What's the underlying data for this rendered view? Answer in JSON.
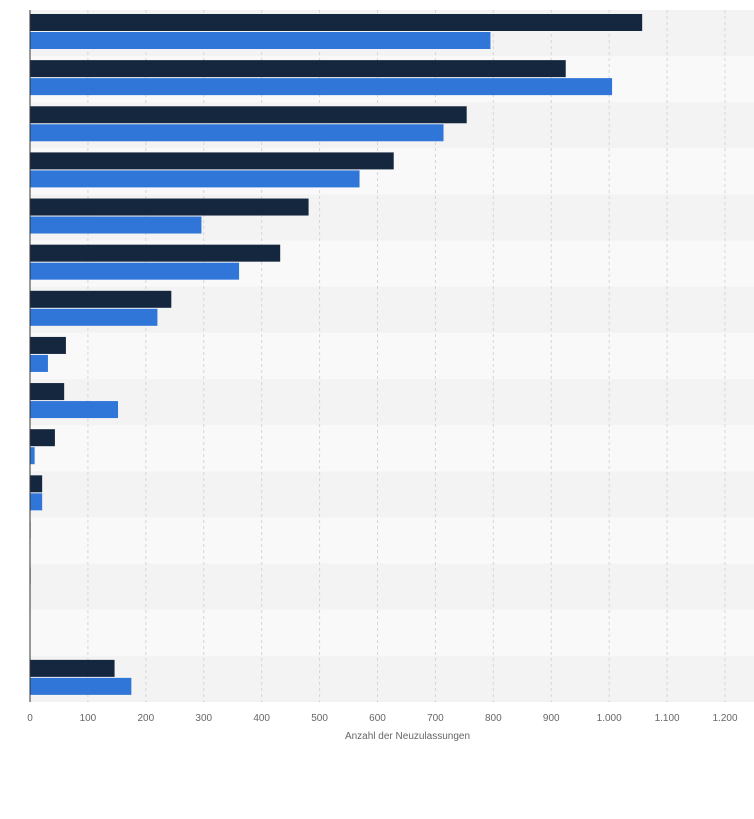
{
  "chart_data": {
    "type": "bar",
    "orientation": "horizontal",
    "title": "",
    "xlabel": "Anzahl der Neuzulassungen",
    "ylabel": "",
    "xlim": [
      0,
      1200
    ],
    "x_ticks": [
      0,
      100,
      200,
      300,
      400,
      500,
      600,
      700,
      800,
      900,
      1000,
      1100,
      1200
    ],
    "x_tick_labels": [
      "0",
      "100",
      "200",
      "300",
      "400",
      "500",
      "600",
      "700",
      "800",
      "900",
      "1.000",
      "1.100",
      "1.200"
    ],
    "grid": "vertical dashed",
    "legend": "none visible",
    "categories": [
      "",
      "",
      "",
      "",
      "",
      "",
      "",
      "",
      "",
      "",
      "",
      "",
      "",
      "",
      ""
    ],
    "series": [
      {
        "color": "#14273f",
        "values": [
          1057,
          925,
          754,
          628,
          481,
          432,
          244,
          62,
          59,
          43,
          21,
          1,
          1,
          0,
          146
        ]
      },
      {
        "color": "#2f76d8",
        "values": [
          795,
          1005,
          714,
          569,
          296,
          361,
          220,
          31,
          152,
          8,
          21,
          0,
          0,
          0,
          175
        ]
      }
    ]
  }
}
